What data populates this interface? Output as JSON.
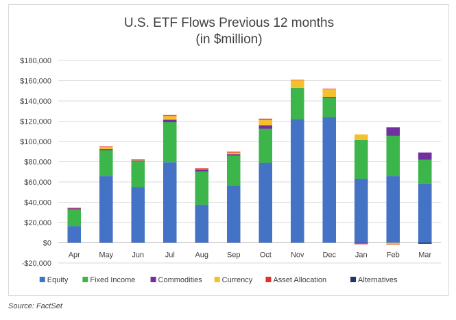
{
  "chart_data": {
    "type": "bar",
    "stacked": true,
    "title": "U.S. ETF Flows Previous 12 months",
    "subtitle": "(in $million)",
    "categories": [
      "Apr",
      "May",
      "Jun",
      "Jul",
      "Aug",
      "Sep",
      "Oct",
      "Nov",
      "Dec",
      "Jan",
      "Feb",
      "Mar"
    ],
    "ylim": [
      -20000,
      180000
    ],
    "yticks": [
      -20000,
      0,
      20000,
      40000,
      60000,
      80000,
      100000,
      120000,
      140000,
      160000,
      180000
    ],
    "ytick_labels": [
      "-$20,000",
      "$0",
      "$20,000",
      "$40,000",
      "$60,000",
      "$80,000",
      "$100,000",
      "$120,000",
      "$140,000",
      "$160,000",
      "$180,000"
    ],
    "grid": true,
    "legend_position": "bottom",
    "series": [
      {
        "name": "Equity",
        "color": "#4472c4",
        "values": [
          16500,
          66000,
          55000,
          79500,
          37500,
          56500,
          79000,
          122000,
          124000,
          63000,
          66000,
          58000
        ]
      },
      {
        "name": "Fixed Income",
        "color": "#3cb54a",
        "values": [
          16500,
          25500,
          25500,
          39500,
          33000,
          29500,
          33500,
          31000,
          19000,
          38500,
          39500,
          24000
        ]
      },
      {
        "name": "Commodities",
        "color": "#7030a0",
        "values": [
          1000,
          1000,
          800,
          2500,
          2000,
          1500,
          3500,
          0,
          1000,
          -500,
          8500,
          7000
        ]
      },
      {
        "name": "Currency",
        "color": "#f5c02b",
        "values": [
          0,
          2000,
          500,
          3500,
          500,
          1500,
          5500,
          7500,
          7500,
          5500,
          -1500,
          0
        ]
      },
      {
        "name": "Asset Allocation",
        "color": "#e0302f",
        "values": [
          500,
          500,
          500,
          1000,
          500,
          1000,
          1000,
          500,
          500,
          -1000,
          -500,
          0
        ]
      },
      {
        "name": "Alternatives",
        "color": "#1f3864",
        "values": [
          0,
          0,
          0,
          0,
          0,
          0,
          0,
          0,
          0,
          0,
          0,
          -1000
        ]
      }
    ]
  },
  "source_note": "Source: FactSet"
}
